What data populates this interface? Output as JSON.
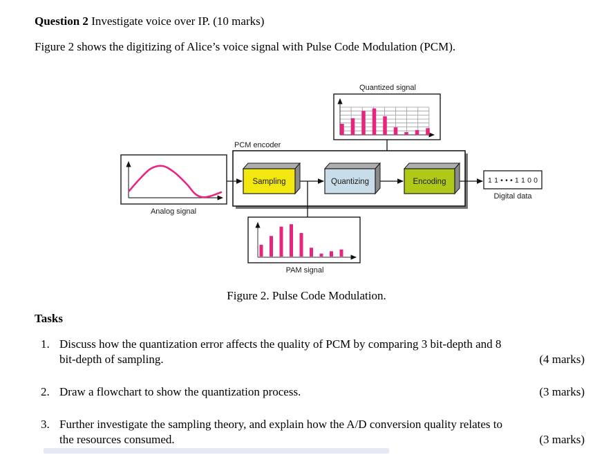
{
  "document": {
    "heading": {
      "bold": "Question 2",
      "rest": " Investigate voice over IP. (10 marks)"
    },
    "intro": "Figure 2 shows the digitizing of Alice’s voice signal with Pulse Code Modulation (PCM).",
    "figure_caption": "Figure 2. Pulse Code Modulation.",
    "tasks_heading": "Tasks",
    "tasks": [
      {
        "number": "1.",
        "lines": [
          "Discuss how the quantization error affects the quality of PCM by comparing 3 bit-depth and 8",
          "bit-depth of sampling."
        ],
        "marks": "(4 marks)"
      },
      {
        "number": "2.",
        "lines": [
          "Draw a flowchart to show the quantization process."
        ],
        "marks": "(3 marks)"
      },
      {
        "number": "3.",
        "lines": [
          "Further investigate the sampling theory, and explain how the A/D conversion quality relates to",
          "the resources consumed."
        ],
        "marks": "(3 marks)"
      }
    ]
  },
  "figure": {
    "labels": {
      "quantized_signal": "Quantized signal",
      "pcm_encoder": "PCM encoder",
      "sampling": "Sampling",
      "quantizing": "Quantizing",
      "encoding": "Encoding",
      "analog_signal": "Analog signal",
      "pam_signal": "PAM signal",
      "digital_bits": "1 1 • • • 1 1 0 0",
      "digital_data": "Digital data"
    },
    "colors": {
      "signal": "#e8247f",
      "sampling_face": "#f2e70e",
      "quantizing_face": "#c9dcea",
      "encoding_face": "#b0c918",
      "block_top": "#aeaeae",
      "block_side": "#8a8a8a",
      "grid": "#9a9a9a",
      "shadow": "#757575"
    },
    "chart_data": [
      {
        "name": "quantized-signal",
        "type": "bar",
        "title": "Quantized signal",
        "values": [
          2.8,
          4.2,
          6.1,
          6.7,
          4.7,
          1.9,
          0.7,
          1.2,
          1.7
        ],
        "ylim": [
          0,
          8
        ],
        "grid": true
      },
      {
        "name": "pam-signal",
        "type": "bar",
        "title": "PAM signal",
        "values": [
          2.0,
          3.5,
          5.1,
          5.5,
          4.0,
          1.5,
          0.5,
          0.9,
          1.2
        ],
        "ylim": [
          0,
          6
        ],
        "grid": false
      },
      {
        "name": "analog-signal",
        "type": "line",
        "title": "Analog signal",
        "description": "smooth voice waveform: rises to one peak, dips to near the time axis, then rises slightly",
        "points": [
          [
            17,
            163
          ],
          [
            32,
            146
          ],
          [
            48,
            131
          ],
          [
            65,
            127
          ],
          [
            82,
            136
          ],
          [
            100,
            153
          ],
          [
            112,
            167
          ],
          [
            122,
            172
          ],
          [
            133,
            171
          ],
          [
            150,
            165
          ]
        ]
      }
    ]
  }
}
